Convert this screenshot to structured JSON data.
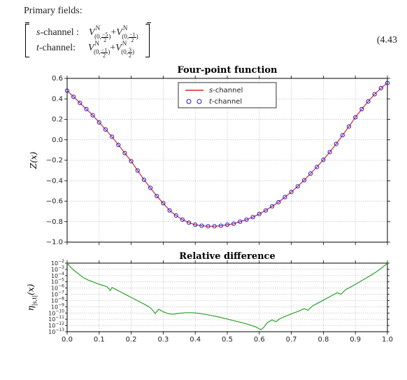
{
  "header_text": "Primary fields:",
  "equation_number": "(4.43",
  "eq": {
    "row1_label_prefix_ital": "s",
    "row1_label_rest": "-channel :",
    "row2_label_prefix_ital": "t",
    "row2_label_rest": "-channel:",
    "V": "V",
    "sup": "N",
    "plus": " + ",
    "sub_open": "(0, ",
    "sub_close": ")",
    "fracs": {
      "r1a_num": "−5",
      "r1a_den": "2",
      "r1b_num": "−1",
      "r1b_den": "2",
      "r2a_num": "−1",
      "r2a_den": "2",
      "r2b_num": "3",
      "r2b_den": "2"
    }
  },
  "chart_top": {
    "title": "Four-point function",
    "ylabel": "Z(x)",
    "xlim": [
      0.0,
      1.0
    ],
    "ylim": [
      -1.0,
      0.6
    ],
    "yticks": [
      -1.0,
      -0.8,
      -0.6,
      -0.4,
      -0.2,
      0.0,
      0.2,
      0.4,
      0.6
    ],
    "xticks": [
      0.0,
      0.1,
      0.2,
      0.3,
      0.4,
      0.5,
      0.6,
      0.7,
      0.8,
      0.9,
      1.0
    ],
    "background": "#ffffff",
    "grid_color": "#bfbfbf",
    "axis_color": "#000000",
    "line_color": "#d62728",
    "line_width": 1.2,
    "marker_edge_color": "#1f1fd6",
    "marker_face": "none",
    "marker_radius": 2.6,
    "legend": {
      "border": "#000000",
      "items": [
        {
          "kind": "line",
          "color": "#d62728",
          "label_ital": "s",
          "label_rest": "-channel"
        },
        {
          "kind": "marker",
          "color": "#1f1fd6",
          "label_ital": "t",
          "label_rest": "-channel"
        }
      ]
    },
    "curve": [
      [
        0.0,
        0.48
      ],
      [
        0.02,
        0.42
      ],
      [
        0.04,
        0.36
      ],
      [
        0.06,
        0.3
      ],
      [
        0.08,
        0.24
      ],
      [
        0.1,
        0.17
      ],
      [
        0.12,
        0.1
      ],
      [
        0.14,
        0.03
      ],
      [
        0.16,
        -0.05
      ],
      [
        0.18,
        -0.13
      ],
      [
        0.2,
        -0.21
      ],
      [
        0.22,
        -0.3
      ],
      [
        0.24,
        -0.39
      ],
      [
        0.26,
        -0.47
      ],
      [
        0.28,
        -0.55
      ],
      [
        0.3,
        -0.62
      ],
      [
        0.32,
        -0.69
      ],
      [
        0.34,
        -0.74
      ],
      [
        0.36,
        -0.78
      ],
      [
        0.38,
        -0.81
      ],
      [
        0.4,
        -0.83
      ],
      [
        0.42,
        -0.84
      ],
      [
        0.44,
        -0.845
      ],
      [
        0.46,
        -0.845
      ],
      [
        0.48,
        -0.84
      ],
      [
        0.5,
        -0.83
      ],
      [
        0.52,
        -0.82
      ],
      [
        0.54,
        -0.8
      ],
      [
        0.56,
        -0.78
      ],
      [
        0.58,
        -0.755
      ],
      [
        0.6,
        -0.725
      ],
      [
        0.62,
        -0.69
      ],
      [
        0.64,
        -0.65
      ],
      [
        0.66,
        -0.61
      ],
      [
        0.68,
        -0.56
      ],
      [
        0.7,
        -0.51
      ],
      [
        0.72,
        -0.455
      ],
      [
        0.74,
        -0.395
      ],
      [
        0.76,
        -0.33
      ],
      [
        0.78,
        -0.265
      ],
      [
        0.8,
        -0.195
      ],
      [
        0.82,
        -0.12
      ],
      [
        0.84,
        -0.04
      ],
      [
        0.86,
        0.045
      ],
      [
        0.88,
        0.13
      ],
      [
        0.9,
        0.22
      ],
      [
        0.92,
        0.3
      ],
      [
        0.94,
        0.375
      ],
      [
        0.96,
        0.445
      ],
      [
        0.98,
        0.505
      ],
      [
        1.0,
        0.555
      ]
    ]
  },
  "chart_bot": {
    "title": "Relative difference",
    "ylabel": "η",
    "ylabel_sub": "|s,t|",
    "ylabel_arg": "(x)",
    "xlim": [
      0.0,
      1.0
    ],
    "log_ymin_exp": -13,
    "log_ymax_exp": -2,
    "ytick_exps": [
      -2,
      -3,
      -4,
      -5,
      -6,
      -7,
      -8,
      -9,
      -10,
      -11,
      -12,
      -13
    ],
    "xticks": [
      0.0,
      0.1,
      0.2,
      0.3,
      0.4,
      0.5,
      0.6,
      0.7,
      0.8,
      0.9,
      1.0
    ],
    "background": "#ffffff",
    "grid_color": "#bfbfbf",
    "axis_color": "#000000",
    "line_color": "#2ca02c",
    "line_width": 1.2,
    "curve_log": [
      [
        0.0,
        -2.0
      ],
      [
        0.01,
        -2.6
      ],
      [
        0.02,
        -3.1
      ],
      [
        0.03,
        -3.5
      ],
      [
        0.04,
        -3.9
      ],
      [
        0.05,
        -4.3
      ],
      [
        0.065,
        -4.7
      ],
      [
        0.08,
        -5.0
      ],
      [
        0.095,
        -5.3
      ],
      [
        0.11,
        -5.55
      ],
      [
        0.125,
        -5.8
      ],
      [
        0.135,
        -6.4
      ],
      [
        0.14,
        -5.9
      ],
      [
        0.155,
        -6.3
      ],
      [
        0.17,
        -6.7
      ],
      [
        0.185,
        -7.1
      ],
      [
        0.2,
        -7.5
      ],
      [
        0.215,
        -7.9
      ],
      [
        0.23,
        -8.3
      ],
      [
        0.245,
        -8.7
      ],
      [
        0.258,
        -9.1
      ],
      [
        0.268,
        -9.6
      ],
      [
        0.275,
        -10.1
      ],
      [
        0.286,
        -9.4
      ],
      [
        0.3,
        -9.8
      ],
      [
        0.315,
        -10.1
      ],
      [
        0.33,
        -10.2
      ],
      [
        0.35,
        -10.05
      ],
      [
        0.37,
        -9.95
      ],
      [
        0.39,
        -9.95
      ],
      [
        0.41,
        -10.05
      ],
      [
        0.43,
        -10.2
      ],
      [
        0.45,
        -10.4
      ],
      [
        0.47,
        -10.6
      ],
      [
        0.49,
        -10.85
      ],
      [
        0.51,
        -11.1
      ],
      [
        0.53,
        -11.35
      ],
      [
        0.55,
        -11.6
      ],
      [
        0.57,
        -11.9
      ],
      [
        0.59,
        -12.25
      ],
      [
        0.605,
        -12.7
      ],
      [
        0.614,
        -12.3
      ],
      [
        0.625,
        -11.55
      ],
      [
        0.64,
        -11.1
      ],
      [
        0.652,
        -11.4
      ],
      [
        0.663,
        -10.95
      ],
      [
        0.68,
        -10.55
      ],
      [
        0.7,
        -10.15
      ],
      [
        0.725,
        -9.65
      ],
      [
        0.74,
        -9.3
      ],
      [
        0.752,
        -9.55
      ],
      [
        0.765,
        -8.9
      ],
      [
        0.785,
        -8.35
      ],
      [
        0.805,
        -7.8
      ],
      [
        0.825,
        -7.25
      ],
      [
        0.843,
        -6.75
      ],
      [
        0.855,
        -7.0
      ],
      [
        0.868,
        -6.3
      ],
      [
        0.89,
        -5.7
      ],
      [
        0.91,
        -5.1
      ],
      [
        0.93,
        -4.5
      ],
      [
        0.95,
        -3.9
      ],
      [
        0.968,
        -3.3
      ],
      [
        0.985,
        -2.65
      ],
      [
        1.0,
        -2.05
      ]
    ]
  }
}
